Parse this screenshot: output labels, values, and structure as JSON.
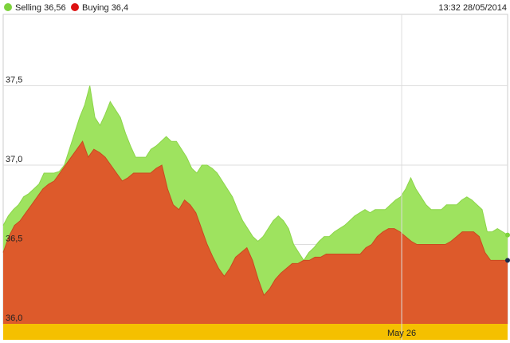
{
  "header": {
    "timestamp": "13:32 28/05/2014"
  },
  "colors": {
    "selling": "#9ee35f",
    "buying": "#dd5a2b",
    "timebar": "#f5c000",
    "grid": "#dddddd"
  },
  "chart_data": {
    "type": "area",
    "legend": [
      {
        "label": "Selling 36,56",
        "color": "#7dd23c"
      },
      {
        "label": "Buying 36,4",
        "color": "#dd1111"
      }
    ],
    "legend_placement": "top-left",
    "ylim": [
      36.0,
      37.95
    ],
    "yticks": [
      {
        "value": 36.0,
        "label": "36,0"
      },
      {
        "value": 36.5,
        "label": "36,5"
      },
      {
        "value": 37.0,
        "label": "37,0"
      },
      {
        "value": 37.5,
        "label": "37,5"
      }
    ],
    "x_label": {
      "text": "May 26",
      "position": 0.79
    },
    "grid": true,
    "series": [
      {
        "name": "Selling",
        "color": "#9ee35f",
        "values": [
          36.62,
          36.68,
          36.72,
          36.75,
          36.8,
          36.82,
          36.85,
          36.88,
          36.95,
          36.95,
          36.95,
          36.96,
          37.0,
          37.1,
          37.2,
          37.3,
          37.38,
          37.5,
          37.3,
          37.25,
          37.32,
          37.4,
          37.35,
          37.3,
          37.2,
          37.12,
          37.05,
          37.05,
          37.05,
          37.1,
          37.12,
          37.15,
          37.18,
          37.15,
          37.15,
          37.1,
          37.05,
          36.98,
          36.95,
          37.0,
          37.0,
          36.98,
          36.95,
          36.9,
          36.85,
          36.8,
          36.72,
          36.65,
          36.6,
          36.55,
          36.52,
          36.55,
          36.6,
          36.65,
          36.68,
          36.65,
          36.6,
          36.5,
          36.45,
          36.4,
          36.45,
          36.48,
          36.52,
          36.55,
          36.55,
          36.58,
          36.6,
          36.62,
          36.65,
          36.68,
          36.7,
          36.72,
          36.7,
          36.72,
          36.72,
          36.72,
          36.75,
          36.78,
          36.8,
          36.85,
          36.92,
          36.85,
          36.8,
          36.75,
          36.72,
          36.72,
          36.72,
          36.75,
          36.75,
          36.75,
          36.78,
          36.8,
          36.78,
          36.75,
          36.72,
          36.58,
          36.58,
          36.6,
          36.58,
          36.56
        ]
      },
      {
        "name": "Buying",
        "color": "#dd5a2b",
        "values": [
          36.45,
          36.55,
          36.62,
          36.65,
          36.7,
          36.75,
          36.8,
          36.85,
          36.88,
          36.9,
          36.95,
          37.0,
          37.05,
          37.1,
          37.15,
          37.05,
          37.1,
          37.08,
          37.05,
          37.0,
          36.95,
          36.9,
          36.92,
          36.95,
          36.95,
          36.95,
          36.95,
          36.98,
          37.0,
          36.85,
          36.75,
          36.72,
          36.78,
          36.75,
          36.7,
          36.6,
          36.5,
          36.42,
          36.35,
          36.3,
          36.35,
          36.42,
          36.45,
          36.48,
          36.4,
          36.28,
          36.18,
          36.22,
          36.28,
          36.32,
          36.35,
          36.38,
          36.38,
          36.4,
          36.4,
          36.42,
          36.42,
          36.44,
          36.44,
          36.44,
          36.44,
          36.44,
          36.44,
          36.44,
          36.48,
          36.5,
          36.55,
          36.58,
          36.6,
          36.6,
          36.58,
          36.55,
          36.52,
          36.5,
          36.5,
          36.5,
          36.5,
          36.5,
          36.5,
          36.52,
          36.55,
          36.58,
          36.58,
          36.58,
          36.55,
          36.45,
          36.4,
          36.4,
          36.4,
          36.4
        ]
      }
    ]
  }
}
